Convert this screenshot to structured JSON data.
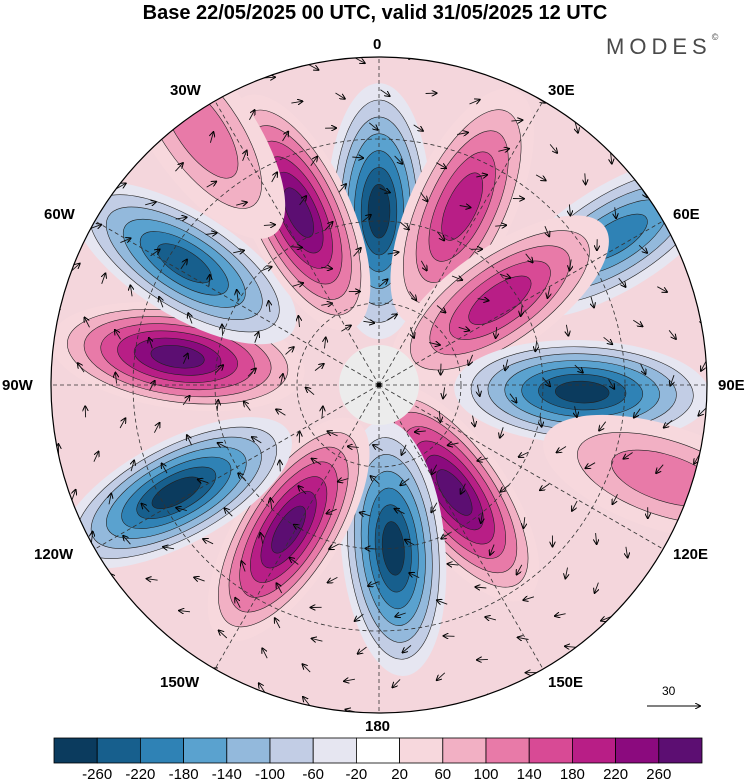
{
  "title": "Base 22/05/2025 00 UTC, valid 31/05/2025 12 UTC",
  "brand": "MODES",
  "brand_mark": "©",
  "longitude_labels": {
    "lon_0": "0",
    "lon_30e": "30E",
    "lon_60e": "60E",
    "lon_90e": "90E",
    "lon_120e": "120E",
    "lon_150e": "150E",
    "lon_180": "180",
    "lon_150w": "150W",
    "lon_120w": "120W",
    "lon_90w": "90W",
    "lon_60w": "60W",
    "lon_30w": "30W"
  },
  "vector_scale_label": "30",
  "colorbar": {
    "ticks": [
      "-260",
      "-220",
      "-180",
      "-140",
      "-100",
      "-60",
      "-20",
      "20",
      "60",
      "100",
      "140",
      "180",
      "220",
      "260"
    ],
    "colors": [
      "#0b3b5e",
      "#175f8d",
      "#2f82b5",
      "#5aa2cf",
      "#93b9dc",
      "#c2cde5",
      "#e6e6f1",
      "#ffffff",
      "#f7d8dd",
      "#f2b0c4",
      "#e87aa8",
      "#d84a95",
      "#b81e86",
      "#8b0a7e",
      "#5c0e72"
    ]
  },
  "anomaly_centers": [
    {
      "lon": 0,
      "colat_frac": 0.53,
      "sign": "neg",
      "strength": 5
    },
    {
      "lon": 25,
      "colat_frac": 0.6,
      "sign": "pos",
      "strength": 3
    },
    {
      "lon": 58,
      "colat_frac": 0.85,
      "sign": "neg",
      "strength": 3
    },
    {
      "lon": 55,
      "colat_frac": 0.45,
      "sign": "pos",
      "strength": 3
    },
    {
      "lon": 92,
      "colat_frac": 0.62,
      "sign": "neg",
      "strength": 5
    },
    {
      "lon": 145,
      "colat_frac": 0.4,
      "sign": "pos",
      "strength": 6
    },
    {
      "lon": 108,
      "colat_frac": 0.92,
      "sign": "pos",
      "strength": 1
    },
    {
      "lon": 175,
      "colat_frac": 0.5,
      "sign": "neg",
      "strength": 5
    },
    {
      "lon": -148,
      "colat_frac": 0.52,
      "sign": "pos",
      "strength": 5
    },
    {
      "lon": -118,
      "colat_frac": 0.7,
      "sign": "neg",
      "strength": 6
    },
    {
      "lon": -82,
      "colat_frac": 0.62,
      "sign": "pos",
      "strength": 5
    },
    {
      "lon": -58,
      "colat_frac": 0.7,
      "sign": "neg",
      "strength": 4
    },
    {
      "lon": -25,
      "colat_frac": 0.58,
      "sign": "pos",
      "strength": 6
    },
    {
      "lon": -35,
      "colat_frac": 0.95,
      "sign": "pos",
      "strength": 1
    }
  ]
}
